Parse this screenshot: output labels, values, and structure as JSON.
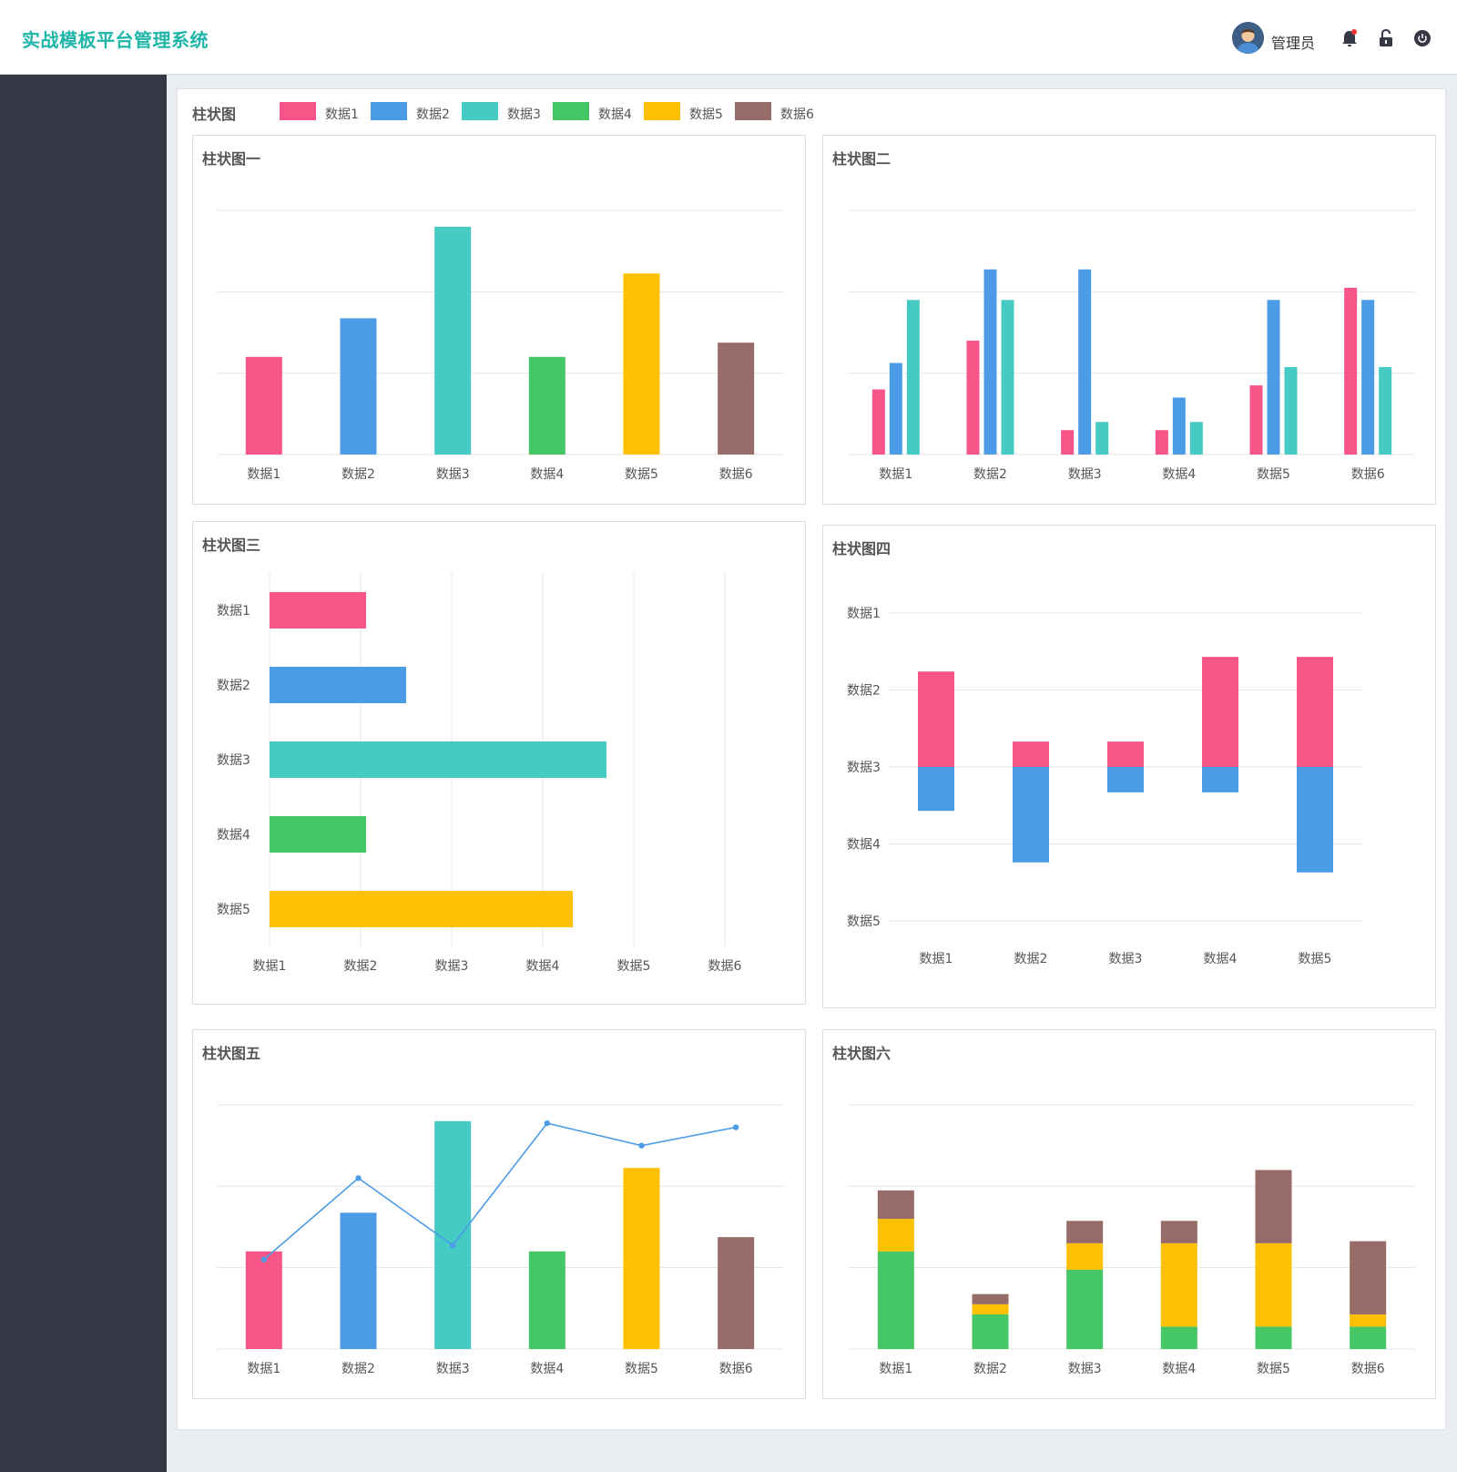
{
  "app": {
    "title": "实战模板平台管理系统"
  },
  "header": {
    "user_name": "管理员"
  },
  "page": {
    "title": "柱状图"
  },
  "legend": [
    {
      "label": "数据1",
      "color": "#f75588"
    },
    {
      "label": "数据2",
      "color": "#4c9be6"
    },
    {
      "label": "数据3",
      "color": "#46cbc4"
    },
    {
      "label": "数据4",
      "color": "#46c766"
    },
    {
      "label": "数据5",
      "color": "#fdc002"
    },
    {
      "label": "数据6",
      "color": "#976b67"
    }
  ],
  "panels": [
    {
      "title": "柱状图一"
    },
    {
      "title": "柱状图二"
    },
    {
      "title": "柱状图三"
    },
    {
      "title": "柱状图四"
    },
    {
      "title": "柱状图五"
    },
    {
      "title": "柱状图六"
    }
  ],
  "chart_data": [
    {
      "type": "bar",
      "title": "柱状图一",
      "categories": [
        "数据1",
        "数据2",
        "数据3",
        "数据4",
        "数据5",
        "数据6"
      ],
      "values": [
        24,
        33.5,
        56,
        24,
        44.5,
        27.5
      ],
      "ylim": [
        0,
        60
      ],
      "colors": [
        "#f75588",
        "#4c9be6",
        "#46cbc4",
        "#46c766",
        "#fdc002",
        "#976b67"
      ],
      "grid": true
    },
    {
      "type": "bar",
      "title": "柱状图二",
      "categories": [
        "数据1",
        "数据2",
        "数据3",
        "数据4",
        "数据5",
        "数据6"
      ],
      "series": [
        {
          "values": [
            16,
            28,
            6,
            6,
            17,
            41
          ],
          "color": "#f75588"
        },
        {
          "values": [
            22.5,
            45.5,
            45.5,
            14,
            38,
            38
          ],
          "color": "#4c9be6"
        },
        {
          "values": [
            38,
            38,
            8,
            8,
            21.5,
            21.5
          ],
          "color": "#46cbc4"
        }
      ],
      "ylim": [
        0,
        60
      ],
      "grid": true
    },
    {
      "type": "bar",
      "orientation": "horizontal",
      "title": "柱状图三",
      "categories": [
        "数据1",
        "数据2",
        "数据3",
        "数据4",
        "数据5"
      ],
      "x_tick_labels": [
        "数据1",
        "数据2",
        "数据3",
        "数据4",
        "数据5",
        "数据6"
      ],
      "values": [
        1.06,
        1.5,
        3.7,
        1.06,
        3.33
      ],
      "xlim": [
        0,
        5
      ],
      "colors": [
        "#f75588",
        "#4c9be6",
        "#46cbc4",
        "#46c766",
        "#fdc002"
      ],
      "grid": true
    },
    {
      "type": "bar",
      "stacked": "diverging",
      "title": "柱状图四",
      "categories": [
        "数据1",
        "数据2",
        "数据3",
        "数据4",
        "数据5"
      ],
      "y_tick_labels": [
        "数据1",
        "数据2",
        "数据3",
        "数据4",
        "数据5"
      ],
      "series": [
        {
          "values": [
            1.24,
            0.33,
            0.33,
            1.43,
            1.43
          ],
          "color": "#f75588"
        },
        {
          "values": [
            -0.57,
            -1.24,
            -0.33,
            -0.33,
            -1.37
          ],
          "color": "#4c9be6"
        }
      ],
      "ylim": [
        -2,
        2
      ],
      "grid": true
    },
    {
      "type": "bar",
      "title": "柱状图五",
      "categories": [
        "数据1",
        "数据2",
        "数据3",
        "数据4",
        "数据5",
        "数据6"
      ],
      "values": [
        24,
        33.5,
        56,
        24,
        44.5,
        27.5
      ],
      "colors": [
        "#f75588",
        "#4c9be6",
        "#46cbc4",
        "#46c766",
        "#fdc002",
        "#976b67"
      ],
      "line": {
        "values": [
          22,
          42,
          25.5,
          55.5,
          50,
          54.5
        ],
        "color": "#4c9be6"
      },
      "ylim": [
        0,
        60
      ],
      "grid": true
    },
    {
      "type": "bar",
      "stacked": true,
      "title": "柱状图六",
      "categories": [
        "数据1",
        "数据2",
        "数据3",
        "数据4",
        "数据5",
        "数据6"
      ],
      "series": [
        {
          "values": [
            24,
            8.5,
            19.5,
            5.5,
            5.5,
            5.5
          ],
          "color": "#46c766"
        },
        {
          "values": [
            8,
            2.5,
            6.5,
            20.5,
            20.5,
            3
          ],
          "color": "#fdc002"
        },
        {
          "values": [
            7,
            2.5,
            5.5,
            5.5,
            18,
            18
          ],
          "color": "#976b67"
        }
      ],
      "ylim": [
        0,
        60
      ],
      "grid": true
    }
  ]
}
